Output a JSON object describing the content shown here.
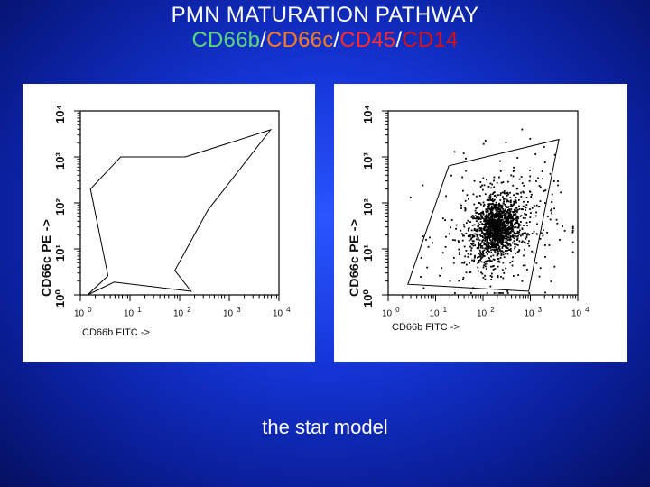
{
  "title": "PMN MATURATION PATHWAY",
  "subtitle": {
    "parts": [
      {
        "text": "CD66b",
        "color": "#5bd87a"
      },
      {
        "text": "/",
        "color": "#ffffff"
      },
      {
        "text": "CD66c",
        "color": "#ff7a1a"
      },
      {
        "text": "/",
        "color": "#ffffff"
      },
      {
        "text": "CD45",
        "color": "#ff2a2a"
      },
      {
        "text": "/",
        "color": "#ffffff"
      },
      {
        "text": "CD14",
        "color": "#d81010"
      }
    ]
  },
  "caption": "the star model",
  "chart_data": [
    {
      "type": "scatter",
      "title": "",
      "xlabel": "CD66b FITC ->",
      "ylabel": "CD66c PE ->",
      "x_scale": "log",
      "y_scale": "log",
      "xlim": [
        1,
        10000
      ],
      "ylim": [
        1,
        10000
      ],
      "x_tick_labels": [
        {
          "base": "10",
          "exp": "0"
        },
        {
          "base": "10",
          "exp": "1"
        },
        {
          "base": "10",
          "exp": "2"
        },
        {
          "base": "10",
          "exp": "3"
        },
        {
          "base": "10",
          "exp": "4"
        }
      ],
      "y_tick_labels": [
        "10⁰",
        "10¹",
        "10²",
        "10³",
        "10⁴"
      ],
      "gate_polygon": [
        [
          6.5,
          1000
        ],
        [
          1.6,
          200
        ],
        [
          3.6,
          2.6
        ],
        [
          1.4,
          1
        ],
        [
          4.8,
          1.9
        ],
        [
          170,
          1.2
        ],
        [
          80,
          3.4
        ],
        [
          370,
          70
        ],
        [
          6800,
          3900
        ],
        [
          130,
          1000
        ]
      ],
      "points": []
    },
    {
      "type": "scatter",
      "title": "",
      "xlabel": "CD66b FITC ->",
      "ylabel": "CD66c PE ->",
      "x_scale": "log",
      "y_scale": "log",
      "xlim": [
        1,
        10000
      ],
      "ylim": [
        1,
        10000
      ],
      "x_tick_labels": [
        {
          "base": "10",
          "exp": "0"
        },
        {
          "base": "10",
          "exp": "1"
        },
        {
          "base": "10",
          "exp": "2"
        },
        {
          "base": "10",
          "exp": "3"
        },
        {
          "base": "10",
          "exp": "4"
        }
      ],
      "y_tick_labels": [
        "10⁰",
        "10¹",
        "10²",
        "10³",
        "10⁴"
      ],
      "gate_polygon": [
        [
          19,
          640
        ],
        [
          2.6,
          1.7
        ],
        [
          920,
          1.2
        ],
        [
          4000,
          2400
        ]
      ],
      "population": {
        "center": [
          200,
          28
        ],
        "spread_decades": [
          0.45,
          0.55
        ],
        "color": "#000000"
      },
      "point_count": 1600
    }
  ]
}
